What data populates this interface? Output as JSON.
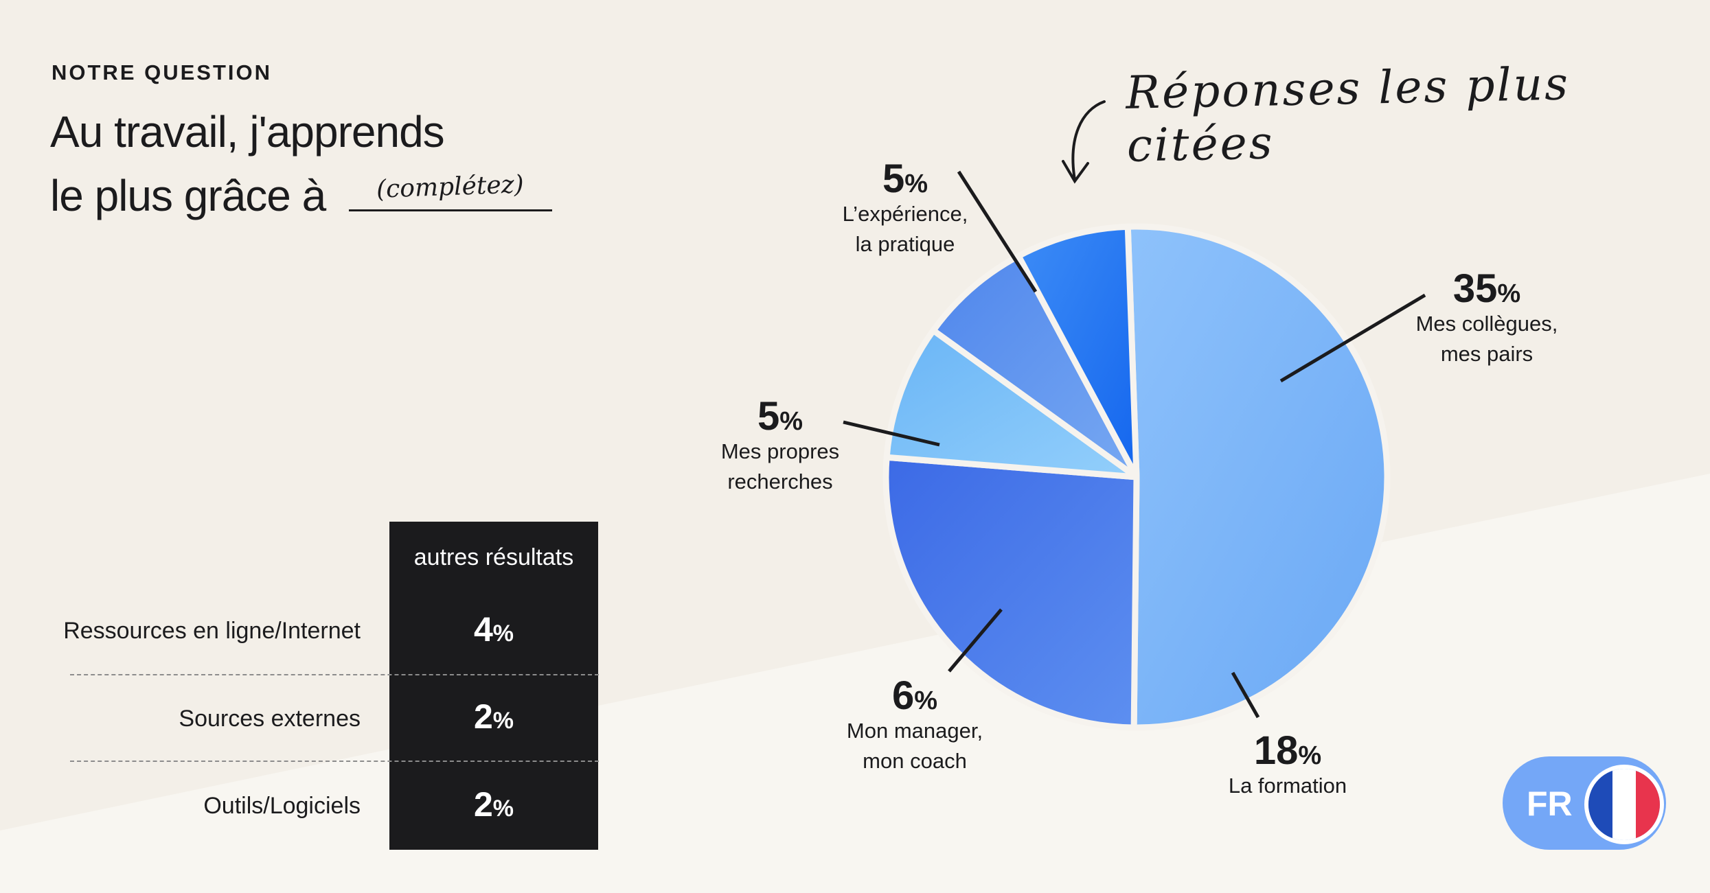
{
  "header": {
    "eyebrow": "NOTRE QUESTION",
    "question_line1": "Au travail, j'apprends",
    "question_line2": "le plus grâce à",
    "blank_hint": "(complétez)"
  },
  "annotation": "Réponses les plus citées",
  "colors": {
    "background": "#f3efe8",
    "dark": "#1b1b1d",
    "slice_colors": [
      "#7cb4f8",
      "#4779ea",
      "#7ec2f8",
      "#5e92ee",
      "#2a7ff4"
    ]
  },
  "chart_data": {
    "type": "pie",
    "title": "",
    "unit": "%",
    "slices": [
      {
        "label": "Mes collègues, mes pairs",
        "label_lines": [
          "Mes collègues,",
          "mes pairs"
        ],
        "value": 35
      },
      {
        "label": "La formation",
        "label_lines": [
          "La formation"
        ],
        "value": 18
      },
      {
        "label": "Mon manager, mon coach",
        "label_lines": [
          "Mon manager,",
          "mon coach"
        ],
        "value": 6
      },
      {
        "label": "Mes propres recherches",
        "label_lines": [
          "Mes propres",
          "recherches"
        ],
        "value": 5
      },
      {
        "label": "L’expérience, la pratique",
        "label_lines": [
          "L’expérience,",
          "la pratique"
        ],
        "value": 5
      }
    ]
  },
  "other_results": {
    "header": "autres résultats",
    "rows": [
      {
        "label": "Ressources en ligne/Internet",
        "value": "4",
        "unit": "%"
      },
      {
        "label": "Sources externes",
        "value": "2",
        "unit": "%"
      },
      {
        "label": "Outils/Logiciels",
        "value": "2",
        "unit": "%"
      }
    ]
  },
  "language_badge": {
    "label": "FR",
    "flag_colors": [
      "#1e4bb8",
      "#ffffff",
      "#e8344d"
    ],
    "icon": "france-flag-icon"
  }
}
